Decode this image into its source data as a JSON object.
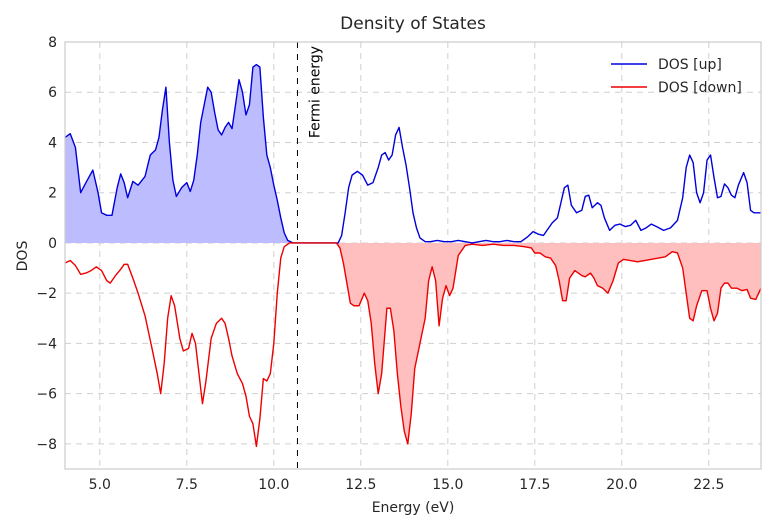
{
  "chart_data": {
    "type": "area",
    "title": "Density of States",
    "xlabel": "Energy (eV)",
    "ylabel": "DOS",
    "xlim": [
      4.0,
      24.0
    ],
    "ylim": [
      -9.0,
      8.0
    ],
    "xticks": [
      5.0,
      7.5,
      10.0,
      12.5,
      15.0,
      17.5,
      20.0,
      22.5
    ],
    "xtick_labels": [
      "5.0",
      "7.5",
      "10.0",
      "12.5",
      "15.0",
      "17.5",
      "20.0",
      "22.5"
    ],
    "yticks": [
      -8,
      -6,
      -4,
      -2,
      0,
      2,
      4,
      6,
      8
    ],
    "ytick_labels": [
      "−8",
      "−6",
      "−4",
      "−2",
      "0",
      "2",
      "4",
      "6",
      "8"
    ],
    "grid": true,
    "legend_position": "top-right",
    "fermi_energy": 10.68,
    "fermi_label": "Fermi energy",
    "series": [
      {
        "name": "DOS [up]",
        "color": "#0000dd",
        "fill_color": "#bcbcff",
        "fill_until": 10.68,
        "points": [
          [
            4.0,
            4.2
          ],
          [
            4.15,
            4.35
          ],
          [
            4.3,
            3.8
          ],
          [
            4.45,
            2.0
          ],
          [
            4.6,
            2.4
          ],
          [
            4.8,
            2.9
          ],
          [
            4.95,
            2.0
          ],
          [
            5.05,
            1.2
          ],
          [
            5.2,
            1.1
          ],
          [
            5.35,
            1.1
          ],
          [
            5.5,
            2.2
          ],
          [
            5.6,
            2.75
          ],
          [
            5.7,
            2.4
          ],
          [
            5.8,
            1.8
          ],
          [
            5.95,
            2.45
          ],
          [
            6.1,
            2.3
          ],
          [
            6.3,
            2.65
          ],
          [
            6.45,
            3.5
          ],
          [
            6.6,
            3.7
          ],
          [
            6.7,
            4.2
          ],
          [
            6.8,
            5.3
          ],
          [
            6.9,
            6.2
          ],
          [
            7.0,
            4.0
          ],
          [
            7.1,
            2.5
          ],
          [
            7.2,
            1.85
          ],
          [
            7.35,
            2.2
          ],
          [
            7.5,
            2.4
          ],
          [
            7.6,
            2.05
          ],
          [
            7.7,
            2.5
          ],
          [
            7.8,
            3.5
          ],
          [
            7.9,
            4.8
          ],
          [
            8.0,
            5.5
          ],
          [
            8.1,
            6.2
          ],
          [
            8.2,
            6.0
          ],
          [
            8.3,
            5.2
          ],
          [
            8.4,
            4.5
          ],
          [
            8.5,
            4.3
          ],
          [
            8.6,
            4.6
          ],
          [
            8.7,
            4.8
          ],
          [
            8.8,
            4.55
          ],
          [
            8.9,
            5.5
          ],
          [
            9.0,
            6.5
          ],
          [
            9.1,
            6.0
          ],
          [
            9.2,
            5.1
          ],
          [
            9.3,
            5.5
          ],
          [
            9.4,
            7.0
          ],
          [
            9.5,
            7.1
          ],
          [
            9.6,
            7.0
          ],
          [
            9.7,
            5.0
          ],
          [
            9.8,
            3.5
          ],
          [
            9.9,
            3.0
          ],
          [
            10.0,
            2.3
          ],
          [
            10.1,
            1.7
          ],
          [
            10.2,
            1.0
          ],
          [
            10.3,
            0.4
          ],
          [
            10.4,
            0.1
          ],
          [
            10.55,
            0.0
          ],
          [
            10.68,
            0.0
          ],
          [
            11.5,
            0.0
          ],
          [
            11.85,
            0.0
          ],
          [
            11.95,
            0.3
          ],
          [
            12.05,
            1.2
          ],
          [
            12.15,
            2.2
          ],
          [
            12.25,
            2.7
          ],
          [
            12.4,
            2.85
          ],
          [
            12.55,
            2.7
          ],
          [
            12.7,
            2.3
          ],
          [
            12.85,
            2.4
          ],
          [
            13.0,
            3.0
          ],
          [
            13.1,
            3.5
          ],
          [
            13.2,
            3.6
          ],
          [
            13.3,
            3.3
          ],
          [
            13.4,
            3.5
          ],
          [
            13.5,
            4.3
          ],
          [
            13.6,
            4.6
          ],
          [
            13.7,
            3.8
          ],
          [
            13.8,
            3.1
          ],
          [
            13.9,
            2.2
          ],
          [
            14.0,
            1.2
          ],
          [
            14.1,
            0.6
          ],
          [
            14.2,
            0.2
          ],
          [
            14.35,
            0.05
          ],
          [
            14.5,
            0.05
          ],
          [
            14.7,
            0.1
          ],
          [
            14.9,
            0.05
          ],
          [
            15.1,
            0.05
          ],
          [
            15.3,
            0.1
          ],
          [
            15.5,
            0.05
          ],
          [
            15.7,
            0.0
          ],
          [
            15.9,
            0.05
          ],
          [
            16.1,
            0.1
          ],
          [
            16.3,
            0.05
          ],
          [
            16.5,
            0.05
          ],
          [
            16.7,
            0.1
          ],
          [
            16.9,
            0.05
          ],
          [
            17.1,
            0.05
          ],
          [
            17.3,
            0.25
          ],
          [
            17.45,
            0.45
          ],
          [
            17.6,
            0.35
          ],
          [
            17.75,
            0.3
          ],
          [
            17.9,
            0.6
          ],
          [
            18.0,
            0.8
          ],
          [
            18.15,
            1.0
          ],
          [
            18.25,
            1.6
          ],
          [
            18.35,
            2.2
          ],
          [
            18.45,
            2.3
          ],
          [
            18.55,
            1.5
          ],
          [
            18.7,
            1.2
          ],
          [
            18.85,
            1.3
          ],
          [
            18.95,
            1.85
          ],
          [
            19.05,
            1.9
          ],
          [
            19.15,
            1.4
          ],
          [
            19.3,
            1.6
          ],
          [
            19.4,
            1.5
          ],
          [
            19.5,
            1.0
          ],
          [
            19.65,
            0.5
          ],
          [
            19.8,
            0.7
          ],
          [
            19.95,
            0.75
          ],
          [
            20.1,
            0.65
          ],
          [
            20.25,
            0.7
          ],
          [
            20.4,
            0.9
          ],
          [
            20.55,
            0.5
          ],
          [
            20.7,
            0.6
          ],
          [
            20.85,
            0.75
          ],
          [
            21.0,
            0.65
          ],
          [
            21.2,
            0.5
          ],
          [
            21.4,
            0.6
          ],
          [
            21.6,
            0.9
          ],
          [
            21.75,
            1.8
          ],
          [
            21.85,
            3.0
          ],
          [
            21.95,
            3.5
          ],
          [
            22.05,
            3.2
          ],
          [
            22.15,
            2.0
          ],
          [
            22.25,
            1.6
          ],
          [
            22.35,
            2.0
          ],
          [
            22.45,
            3.3
          ],
          [
            22.55,
            3.5
          ],
          [
            22.65,
            2.6
          ],
          [
            22.75,
            1.8
          ],
          [
            22.85,
            1.85
          ],
          [
            22.95,
            2.35
          ],
          [
            23.05,
            2.2
          ],
          [
            23.15,
            1.9
          ],
          [
            23.25,
            1.8
          ],
          [
            23.35,
            2.3
          ],
          [
            23.5,
            2.8
          ],
          [
            23.6,
            2.4
          ],
          [
            23.7,
            1.3
          ],
          [
            23.8,
            1.2
          ],
          [
            24.0,
            1.2
          ]
        ]
      },
      {
        "name": "DOS [down]",
        "color": "#ee0000",
        "fill_color": "#ffbfbf",
        "fill_from": 10.68,
        "points": [
          [
            4.0,
            -0.8
          ],
          [
            4.15,
            -0.7
          ],
          [
            4.3,
            -0.9
          ],
          [
            4.45,
            -1.25
          ],
          [
            4.6,
            -1.2
          ],
          [
            4.75,
            -1.1
          ],
          [
            4.9,
            -0.95
          ],
          [
            5.05,
            -1.1
          ],
          [
            5.2,
            -1.5
          ],
          [
            5.3,
            -1.6
          ],
          [
            5.45,
            -1.3
          ],
          [
            5.6,
            -1.05
          ],
          [
            5.7,
            -0.85
          ],
          [
            5.8,
            -0.85
          ],
          [
            5.95,
            -1.4
          ],
          [
            6.1,
            -2.0
          ],
          [
            6.3,
            -2.9
          ],
          [
            6.5,
            -4.2
          ],
          [
            6.65,
            -5.2
          ],
          [
            6.75,
            -6.0
          ],
          [
            6.85,
            -4.8
          ],
          [
            6.95,
            -3.0
          ],
          [
            7.05,
            -2.1
          ],
          [
            7.15,
            -2.5
          ],
          [
            7.3,
            -3.8
          ],
          [
            7.4,
            -4.3
          ],
          [
            7.55,
            -4.2
          ],
          [
            7.65,
            -3.6
          ],
          [
            7.75,
            -4.0
          ],
          [
            7.85,
            -5.2
          ],
          [
            7.95,
            -6.4
          ],
          [
            8.05,
            -5.5
          ],
          [
            8.2,
            -3.8
          ],
          [
            8.35,
            -3.2
          ],
          [
            8.5,
            -3.0
          ],
          [
            8.6,
            -3.2
          ],
          [
            8.7,
            -3.8
          ],
          [
            8.8,
            -4.5
          ],
          [
            8.95,
            -5.2
          ],
          [
            9.1,
            -5.6
          ],
          [
            9.2,
            -6.1
          ],
          [
            9.3,
            -6.9
          ],
          [
            9.4,
            -7.2
          ],
          [
            9.5,
            -8.1
          ],
          [
            9.6,
            -7.0
          ],
          [
            9.7,
            -5.4
          ],
          [
            9.8,
            -5.5
          ],
          [
            9.9,
            -5.2
          ],
          [
            10.0,
            -4.0
          ],
          [
            10.1,
            -2.0
          ],
          [
            10.2,
            -0.6
          ],
          [
            10.3,
            -0.15
          ],
          [
            10.45,
            0.0
          ],
          [
            11.8,
            0.0
          ],
          [
            11.9,
            -0.2
          ],
          [
            12.0,
            -0.8
          ],
          [
            12.1,
            -1.6
          ],
          [
            12.2,
            -2.4
          ],
          [
            12.3,
            -2.5
          ],
          [
            12.45,
            -2.5
          ],
          [
            12.6,
            -2.0
          ],
          [
            12.7,
            -2.3
          ],
          [
            12.8,
            -3.2
          ],
          [
            12.9,
            -4.8
          ],
          [
            13.0,
            -6.0
          ],
          [
            13.1,
            -5.2
          ],
          [
            13.25,
            -2.6
          ],
          [
            13.35,
            -2.6
          ],
          [
            13.45,
            -3.5
          ],
          [
            13.55,
            -5.2
          ],
          [
            13.65,
            -6.5
          ],
          [
            13.75,
            -7.5
          ],
          [
            13.85,
            -8.0
          ],
          [
            13.95,
            -6.8
          ],
          [
            14.05,
            -5.0
          ],
          [
            14.2,
            -4.0
          ],
          [
            14.35,
            -3.0
          ],
          [
            14.45,
            -1.5
          ],
          [
            14.55,
            -0.95
          ],
          [
            14.65,
            -1.5
          ],
          [
            14.75,
            -3.3
          ],
          [
            14.85,
            -2.2
          ],
          [
            14.95,
            -1.7
          ],
          [
            15.05,
            -2.1
          ],
          [
            15.15,
            -1.8
          ],
          [
            15.3,
            -0.5
          ],
          [
            15.5,
            -0.1
          ],
          [
            15.7,
            -0.05
          ],
          [
            16.0,
            -0.1
          ],
          [
            16.3,
            -0.05
          ],
          [
            16.6,
            -0.1
          ],
          [
            16.9,
            -0.1
          ],
          [
            17.2,
            -0.15
          ],
          [
            17.4,
            -0.2
          ],
          [
            17.5,
            -0.4
          ],
          [
            17.65,
            -0.4
          ],
          [
            17.8,
            -0.55
          ],
          [
            17.95,
            -0.6
          ],
          [
            18.1,
            -0.9
          ],
          [
            18.2,
            -1.5
          ],
          [
            18.3,
            -2.3
          ],
          [
            18.4,
            -2.3
          ],
          [
            18.5,
            -1.4
          ],
          [
            18.65,
            -1.1
          ],
          [
            18.85,
            -1.3
          ],
          [
            18.95,
            -1.35
          ],
          [
            19.1,
            -1.2
          ],
          [
            19.2,
            -1.4
          ],
          [
            19.3,
            -1.7
          ],
          [
            19.45,
            -1.8
          ],
          [
            19.6,
            -2.0
          ],
          [
            19.75,
            -1.5
          ],
          [
            19.9,
            -0.8
          ],
          [
            20.05,
            -0.65
          ],
          [
            20.25,
            -0.7
          ],
          [
            20.45,
            -0.75
          ],
          [
            20.65,
            -0.7
          ],
          [
            20.85,
            -0.65
          ],
          [
            21.05,
            -0.6
          ],
          [
            21.25,
            -0.55
          ],
          [
            21.45,
            -0.35
          ],
          [
            21.6,
            -0.4
          ],
          [
            21.75,
            -1.0
          ],
          [
            21.85,
            -2.0
          ],
          [
            21.95,
            -3.0
          ],
          [
            22.05,
            -3.1
          ],
          [
            22.15,
            -2.5
          ],
          [
            22.3,
            -1.9
          ],
          [
            22.45,
            -1.9
          ],
          [
            22.55,
            -2.6
          ],
          [
            22.65,
            -3.1
          ],
          [
            22.75,
            -2.8
          ],
          [
            22.85,
            -1.8
          ],
          [
            22.95,
            -1.6
          ],
          [
            23.05,
            -1.6
          ],
          [
            23.15,
            -1.8
          ],
          [
            23.3,
            -1.8
          ],
          [
            23.45,
            -1.9
          ],
          [
            23.6,
            -1.85
          ],
          [
            23.7,
            -2.2
          ],
          [
            23.85,
            -2.25
          ],
          [
            24.0,
            -1.8
          ]
        ]
      }
    ]
  }
}
